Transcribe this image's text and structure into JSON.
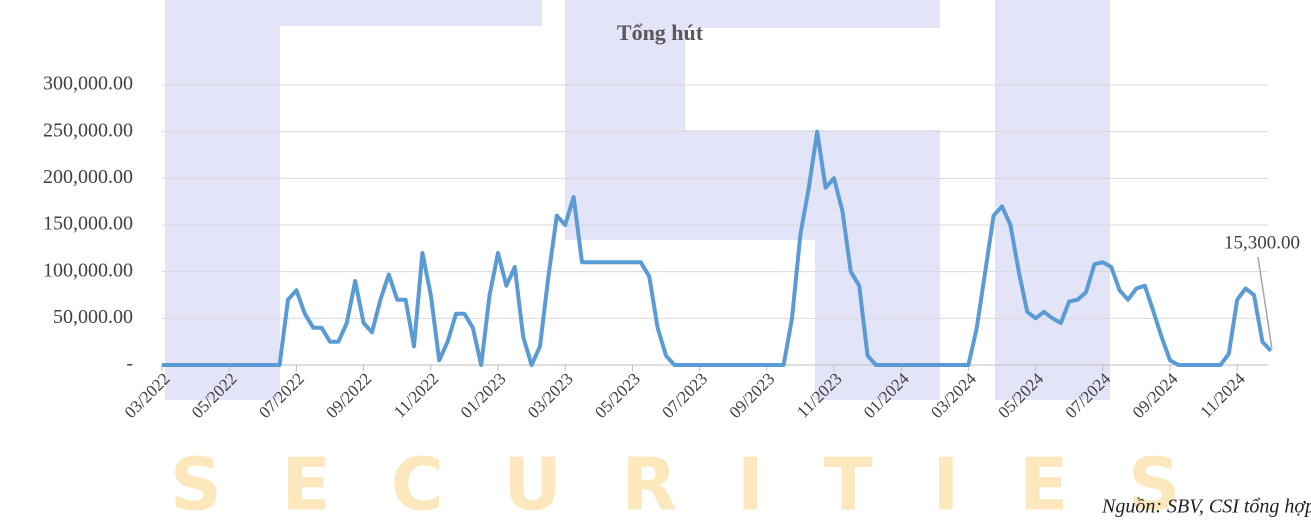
{
  "chart_data": {
    "type": "line",
    "title": "Tổng hút",
    "source": "Nguồn: SBV, CSI tổng hợp",
    "watermark": "SECURITIES",
    "categories": [
      "03/2022",
      null,
      null,
      null,
      null,
      null,
      null,
      null,
      "05/2022",
      null,
      null,
      null,
      null,
      null,
      null,
      null,
      "07/2022",
      null,
      null,
      null,
      null,
      null,
      null,
      null,
      "09/2022",
      null,
      null,
      null,
      null,
      null,
      null,
      null,
      "11/2022",
      null,
      null,
      null,
      null,
      null,
      null,
      null,
      "01/2023",
      null,
      null,
      null,
      null,
      null,
      null,
      null,
      "03/2023",
      null,
      null,
      null,
      null,
      null,
      null,
      null,
      "05/2023",
      null,
      null,
      null,
      null,
      null,
      null,
      null,
      "07/2023",
      null,
      null,
      null,
      null,
      null,
      null,
      null,
      "09/2023",
      null,
      null,
      null,
      null,
      null,
      null,
      null,
      "11/2023",
      null,
      null,
      null,
      null,
      null,
      null,
      null,
      "01/2024",
      null,
      null,
      null,
      null,
      null,
      null,
      null,
      "03/2024",
      null,
      null,
      null,
      null,
      null,
      null,
      null,
      "05/2024",
      null,
      null,
      null,
      null,
      null,
      null,
      null,
      "07/2024",
      null,
      null,
      null,
      null,
      null,
      null,
      null,
      "09/2024",
      null,
      null,
      null,
      null,
      null,
      null,
      null,
      "11/2024",
      null,
      null,
      null,
      null
    ],
    "series": [
      {
        "color": "#5b9bd5",
        "values": [
          0,
          0,
          0,
          0,
          0,
          0,
          0,
          0,
          0,
          0,
          0,
          0,
          0,
          0,
          0,
          70000,
          80000,
          55000,
          40000,
          40000,
          25000,
          25000,
          45000,
          90000,
          45000,
          35000,
          70000,
          97000,
          70000,
          70000,
          20000,
          120000,
          75000,
          5000,
          25000,
          55000,
          55000,
          40000,
          0,
          75000,
          120000,
          85000,
          105000,
          30000,
          0,
          20000,
          95000,
          160000,
          150000,
          180000,
          110000,
          110000,
          110000,
          110000,
          110000,
          110000,
          110000,
          110000,
          95000,
          40000,
          10000,
          0,
          0,
          0,
          0,
          0,
          0,
          0,
          0,
          0,
          0,
          0,
          0,
          0,
          0,
          50000,
          140000,
          190000,
          250000,
          190000,
          200000,
          165000,
          100000,
          85000,
          10000,
          0,
          0,
          0,
          0,
          0,
          0,
          0,
          0,
          0,
          0,
          0,
          0,
          40000,
          100000,
          160000,
          170000,
          150000,
          100000,
          57000,
          50000,
          57000,
          50000,
          45000,
          68000,
          70000,
          78000,
          108000,
          110000,
          105000,
          80000,
          70000,
          82000,
          85000,
          58000,
          30000,
          5000,
          0,
          0,
          0,
          0,
          0,
          0,
          12000,
          70000,
          82000,
          75000,
          25000,
          15300
        ],
        "value_labels": [
          null,
          null,
          null,
          null,
          null,
          null,
          null,
          null,
          null,
          null,
          null,
          null,
          null,
          null,
          null,
          null,
          null,
          null,
          null,
          null,
          null,
          null,
          null,
          null,
          null,
          null,
          null,
          null,
          null,
          null,
          null,
          null,
          null,
          null,
          null,
          null,
          null,
          null,
          null,
          null,
          null,
          null,
          null,
          null,
          null,
          null,
          null,
          null,
          null,
          null,
          null,
          null,
          null,
          null,
          null,
          null,
          null,
          null,
          null,
          null,
          null,
          null,
          null,
          null,
          null,
          null,
          null,
          null,
          null,
          null,
          null,
          null,
          null,
          null,
          null,
          null,
          null,
          null,
          null,
          null,
          null,
          null,
          null,
          null,
          null,
          null,
          null,
          null,
          null,
          null,
          null,
          null,
          null,
          null,
          null,
          null,
          null,
          null,
          null,
          null,
          null,
          null,
          null,
          null,
          null,
          null,
          null,
          null,
          null,
          null,
          null,
          null,
          null,
          null,
          null,
          null,
          null,
          null,
          null,
          null,
          null,
          null,
          null,
          null,
          null,
          null,
          null,
          null,
          null,
          null,
          null,
          null,
          "15,300.00"
        ]
      }
    ],
    "ylim": [
      0,
      300000
    ],
    "yticks": [
      {
        "value": 0,
        "label": "-"
      },
      {
        "value": 50000,
        "label": "50,000.00"
      },
      {
        "value": 100000,
        "label": "100,000.00"
      },
      {
        "value": 150000,
        "label": "150,000.00"
      },
      {
        "value": 200000,
        "label": "200,000.00"
      },
      {
        "value": 250000,
        "label": "250,000.00"
      },
      {
        "value": 300000,
        "label": "300,000.00"
      }
    ],
    "grid": true
  }
}
